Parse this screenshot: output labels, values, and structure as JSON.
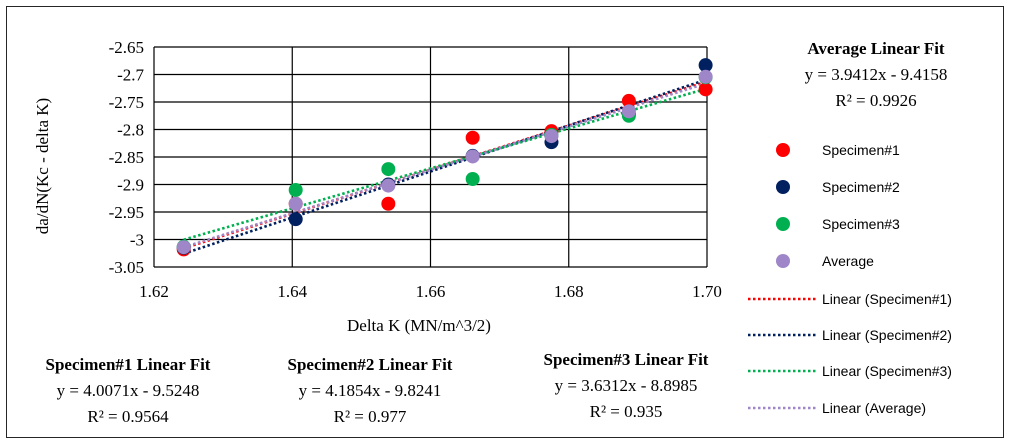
{
  "chart_data": {
    "type": "scatter",
    "xlabel": "Delta K (MN/m^3/2)",
    "ylabel": "da/dN(Kc - delta K)",
    "xlim": [
      1.62,
      1.7
    ],
    "ylim": [
      -3.05,
      -2.65
    ],
    "x_ticks": [
      "1.62",
      "1.64",
      "1.66",
      "1.68",
      "1.70"
    ],
    "y_ticks": [
      "-2.65",
      "-2.7",
      "-2.75",
      "-2.8",
      "-2.85",
      "-2.9",
      "-2.95",
      "-3",
      "-3.05"
    ],
    "grid": true,
    "legend_position": "right",
    "series": [
      {
        "name": "Specimen#1",
        "color": "#ff0000",
        "x": [
          1.6243,
          1.6405,
          1.6539,
          1.6661,
          1.6775,
          1.6887,
          1.6998
        ],
        "y": [
          -3.018,
          -2.935,
          -2.935,
          -2.815,
          -2.803,
          -2.748,
          -2.727
        ]
      },
      {
        "name": "Specimen#2",
        "color": "#002060",
        "x": [
          1.6243,
          1.6405,
          1.6539,
          1.6661,
          1.6775,
          1.6887,
          1.6998
        ],
        "y": [
          -3.015,
          -2.963,
          -2.9,
          -2.848,
          -2.823,
          -2.772,
          -2.683
        ]
      },
      {
        "name": "Specimen#3",
        "color": "#00b050",
        "x": [
          1.6243,
          1.6405,
          1.6539,
          1.6661,
          1.6775,
          1.6887,
          1.6998
        ],
        "y": [
          -3.013,
          -2.91,
          -2.872,
          -2.89,
          -2.81,
          -2.775,
          -2.705
        ]
      },
      {
        "name": "Average",
        "color": "#9e86c8",
        "x": [
          1.6243,
          1.6405,
          1.6539,
          1.6661,
          1.6775,
          1.6887,
          1.6998
        ],
        "y": [
          -3.014,
          -2.935,
          -2.902,
          -2.849,
          -2.812,
          -2.767,
          -2.704
        ]
      }
    ],
    "trendlines": [
      {
        "name": "Linear (Specimen#1)",
        "color": "#ff0000",
        "slope": 4.0071,
        "intercept": -9.5248
      },
      {
        "name": "Linear (Specimen#2)",
        "color": "#002060",
        "slope": 4.1854,
        "intercept": -9.8241
      },
      {
        "name": "Linear (Specimen#3)",
        "color": "#00b050",
        "slope": 3.6312,
        "intercept": -8.8985
      },
      {
        "name": "Linear (Average)",
        "color": "#9e86c8",
        "slope": 3.9412,
        "intercept": -9.4158
      }
    ],
    "fit_annotations": {
      "average": {
        "title": "Average Linear Fit",
        "equation": "y = 3.9412x - 9.4158",
        "r2": "R² = 0.9926"
      },
      "specimen1": {
        "title": "Specimen#1 Linear Fit",
        "equation": "y = 4.0071x - 9.5248",
        "r2": "R² = 0.9564"
      },
      "specimen2": {
        "title": "Specimen#2 Linear Fit",
        "equation": "y = 4.1854x - 9.8241",
        "r2": "R² = 0.977"
      },
      "specimen3": {
        "title": "Specimen#3 Linear Fit",
        "equation": "y = 3.6312x - 8.8985",
        "r2": "R² = 0.935"
      }
    }
  }
}
